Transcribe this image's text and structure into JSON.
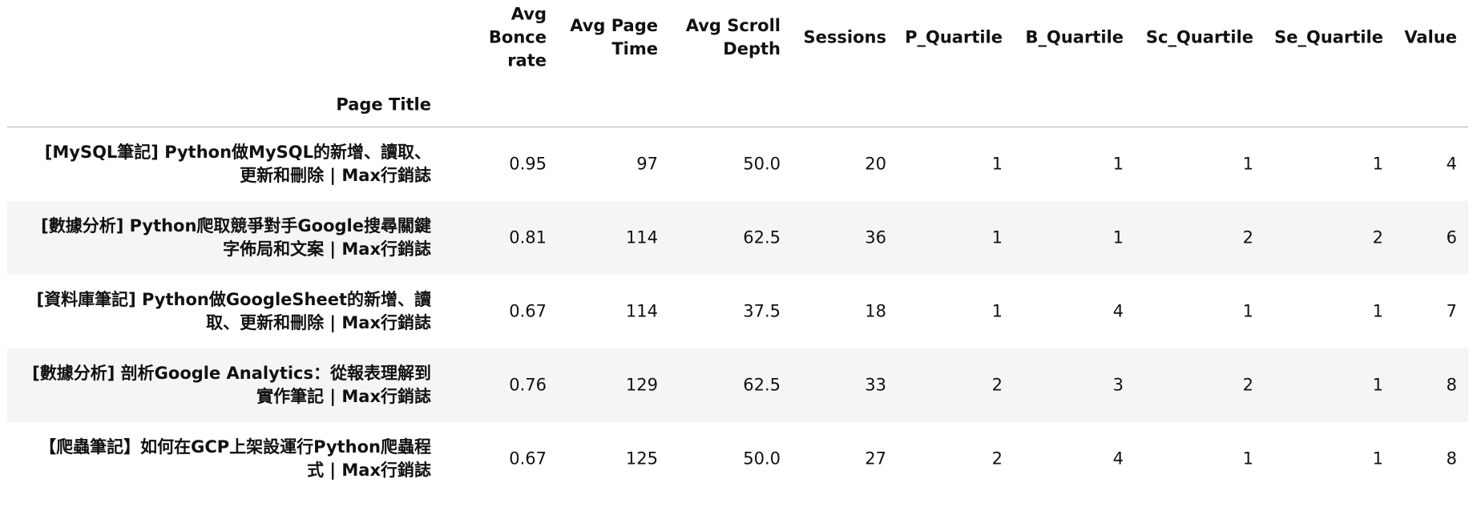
{
  "table": {
    "index_name": "Page Title",
    "columns": [
      "Avg Bonce rate",
      "Avg Page Time",
      "Avg Scroll Depth",
      "Sessions",
      "P_Quartile",
      "B_Quartile",
      "Sc_Quartile",
      "Se_Quartile",
      "Value"
    ],
    "rows": [
      {
        "title": "[MySQL筆記] Python做MySQL的新增、讀取、更新和刪除 | Max行銷誌",
        "cells": [
          "0.95",
          "97",
          "50.0",
          "20",
          "1",
          "1",
          "1",
          "1",
          "4"
        ]
      },
      {
        "title": "[數據分析] Python爬取競爭對手Google搜尋關鍵字佈局和文案 | Max行銷誌",
        "cells": [
          "0.81",
          "114",
          "62.5",
          "36",
          "1",
          "1",
          "2",
          "2",
          "6"
        ]
      },
      {
        "title": "[資料庫筆記] Python做GoogleSheet的新增、讀取、更新和刪除 | Max行銷誌",
        "cells": [
          "0.67",
          "114",
          "37.5",
          "18",
          "1",
          "4",
          "1",
          "1",
          "7"
        ]
      },
      {
        "title": "[數據分析] 剖析Google Analytics：從報表理解到實作筆記 | Max行銷誌",
        "cells": [
          "0.76",
          "129",
          "62.5",
          "33",
          "2",
          "3",
          "2",
          "1",
          "8"
        ]
      },
      {
        "title": "【爬蟲筆記】如何在GCP上架設運行Python爬蟲程式 | Max行銷誌",
        "cells": [
          "0.67",
          "125",
          "50.0",
          "27",
          "2",
          "4",
          "1",
          "1",
          "8"
        ]
      }
    ]
  }
}
